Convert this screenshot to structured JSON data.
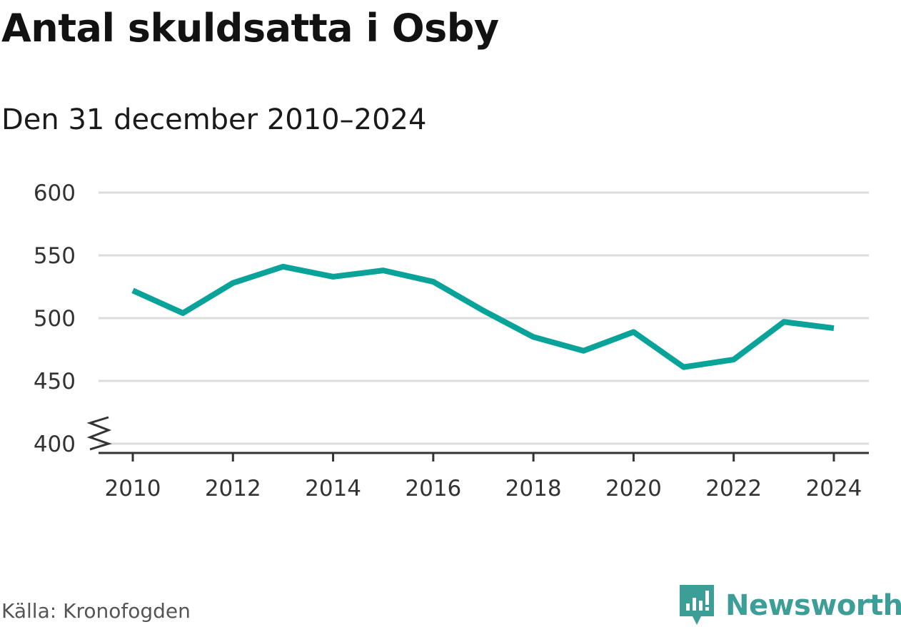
{
  "title": "Antal skuldsatta i Osby",
  "subtitle": "Den 31 december 2010–2024",
  "source": "Källa: Kronofogden",
  "brand": {
    "name": "Newsworthy",
    "icon": "newsworthy-logo-icon",
    "color": "#3d9e98"
  },
  "colors": {
    "line": "#0aa39a",
    "grid": "#dddddd",
    "axis": "#333333"
  },
  "chart_data": {
    "type": "line",
    "title": "Antal skuldsatta i Osby",
    "subtitle": "Den 31 december 2010–2024",
    "xlabel": "",
    "ylabel": "",
    "x": [
      2010,
      2011,
      2012,
      2013,
      2014,
      2015,
      2016,
      2017,
      2018,
      2019,
      2020,
      2021,
      2022,
      2023,
      2024
    ],
    "series": [
      {
        "values": [
          522,
          504,
          528,
          541,
          533,
          538,
          529,
          506,
          485,
          474,
          489,
          461,
          467,
          497,
          492
        ]
      }
    ],
    "ylim": [
      400,
      600
    ],
    "y_ticks": [
      400,
      450,
      500,
      550,
      600
    ],
    "x_ticks": [
      2010,
      2012,
      2014,
      2016,
      2018,
      2020,
      2022,
      2024
    ],
    "axis_break": true,
    "grid": true,
    "legend": "none"
  }
}
